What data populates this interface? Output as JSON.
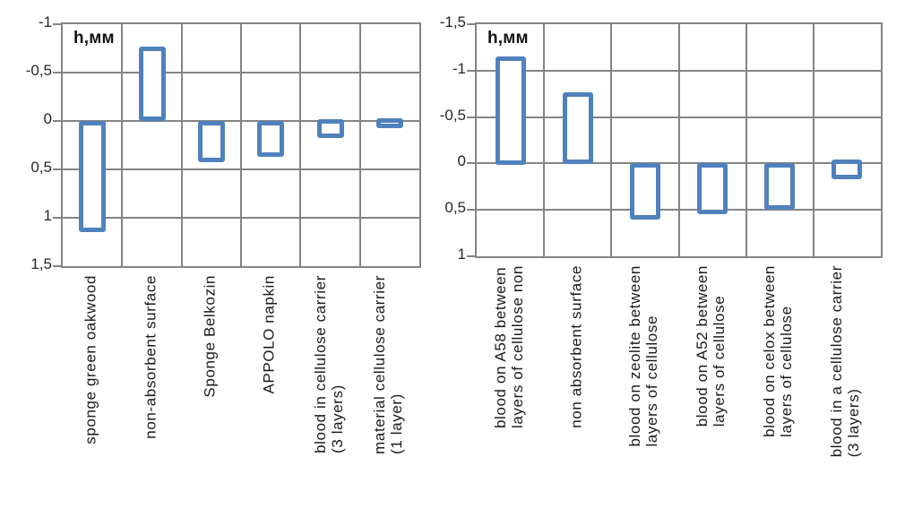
{
  "style": {
    "bar_border_color": "#4f81bd",
    "bar_fill_color": "#ffffff",
    "grid_color": "#848484",
    "text_color": "#262626",
    "background": "#ffffff"
  },
  "chart_data": [
    {
      "type": "bar",
      "subtype": "floating-range-bars",
      "units_label": "h,мм",
      "legend": "none",
      "grid": "on",
      "y_axis": {
        "tick_labels": [
          "-1",
          "-0,5",
          "0",
          "0,5",
          "1",
          "1,5"
        ],
        "tick_values": [
          -1,
          -0.5,
          0,
          0.5,
          1,
          1.5
        ],
        "min": -1,
        "max": 1.5,
        "inverted": true,
        "decimal_separator": ","
      },
      "categories": [
        "sponge green oakwood",
        "non-absorbent surface",
        "Sponge Belkozin",
        "APPOLO napkin",
        "blood in cellulose carrier (3 layers)",
        "material cellulose carrier (1 layer)"
      ],
      "category_label_lines": [
        [
          "sponge green oakwood"
        ],
        [
          "non-absorbent surface"
        ],
        [
          "Sponge Belkozin"
        ],
        [
          "APPOLO napkin"
        ],
        [
          "blood in cellulose carrier",
          "(3 layers)"
        ],
        [
          "material cellulose carrier",
          "(1 layer)"
        ]
      ],
      "bars": [
        {
          "category": "sponge green oakwood",
          "from": 0,
          "to": 1.15
        },
        {
          "category": "non-absorbent surface",
          "from": -0.77,
          "to": 0
        },
        {
          "category": "Sponge Belkozin",
          "from": 0,
          "to": 0.43
        },
        {
          "category": "APPOLO napkin",
          "from": 0,
          "to": 0.37
        },
        {
          "category": "blood in cellulose carrier (3 layers)",
          "from": -0.02,
          "to": 0.18
        },
        {
          "category": "material cellulose carrier (1 layer)",
          "from": -0.03,
          "to": 0.07
        }
      ]
    },
    {
      "type": "bar",
      "subtype": "floating-range-bars",
      "units_label": "h,мм",
      "legend": "none",
      "grid": "on",
      "y_axis": {
        "tick_labels": [
          "-1,5",
          "-1",
          "-0,5",
          "0",
          "0,5",
          "1"
        ],
        "tick_values": [
          -1.5,
          -1,
          -0.5,
          0,
          0.5,
          1
        ],
        "min": -1.5,
        "max": 1,
        "inverted": true,
        "decimal_separator": ","
      },
      "categories": [
        "blood on A58 between layers of cellulose non",
        "non absorbent surface",
        "blood on zeolite between layers of cellulose",
        "blood on A52 between layers of cellulose",
        "blood on celox between layers of cellulose",
        "blood in a cellulose carrier (3 layers)"
      ],
      "category_label_lines": [
        [
          "blood on A58 between",
          "layers of cellulose non"
        ],
        [
          "non absorbent surface"
        ],
        [
          "blood on zeolite between",
          "layers of cellulose"
        ],
        [
          "blood on A52 between",
          "layers of cellulose"
        ],
        [
          "blood on celox between",
          "layers of cellulose"
        ],
        [
          "blood in a cellulose carrier",
          "(3 layers)"
        ]
      ],
      "bars": [
        {
          "category": "blood on A58 between layers of cellulose non",
          "from": -1.15,
          "to": 0.02
        },
        {
          "category": "non absorbent surface",
          "from": -0.77,
          "to": 0.01
        },
        {
          "category": "blood on zeolite between layers of cellulose",
          "from": 0,
          "to": 0.6
        },
        {
          "category": "blood on A52 between layers of cellulose",
          "from": 0,
          "to": 0.55
        },
        {
          "category": "blood on celox between layers of cellulose",
          "from": 0,
          "to": 0.5
        },
        {
          "category": "blood in a cellulose carrier (3 layers)",
          "from": -0.04,
          "to": 0.17
        }
      ]
    }
  ]
}
